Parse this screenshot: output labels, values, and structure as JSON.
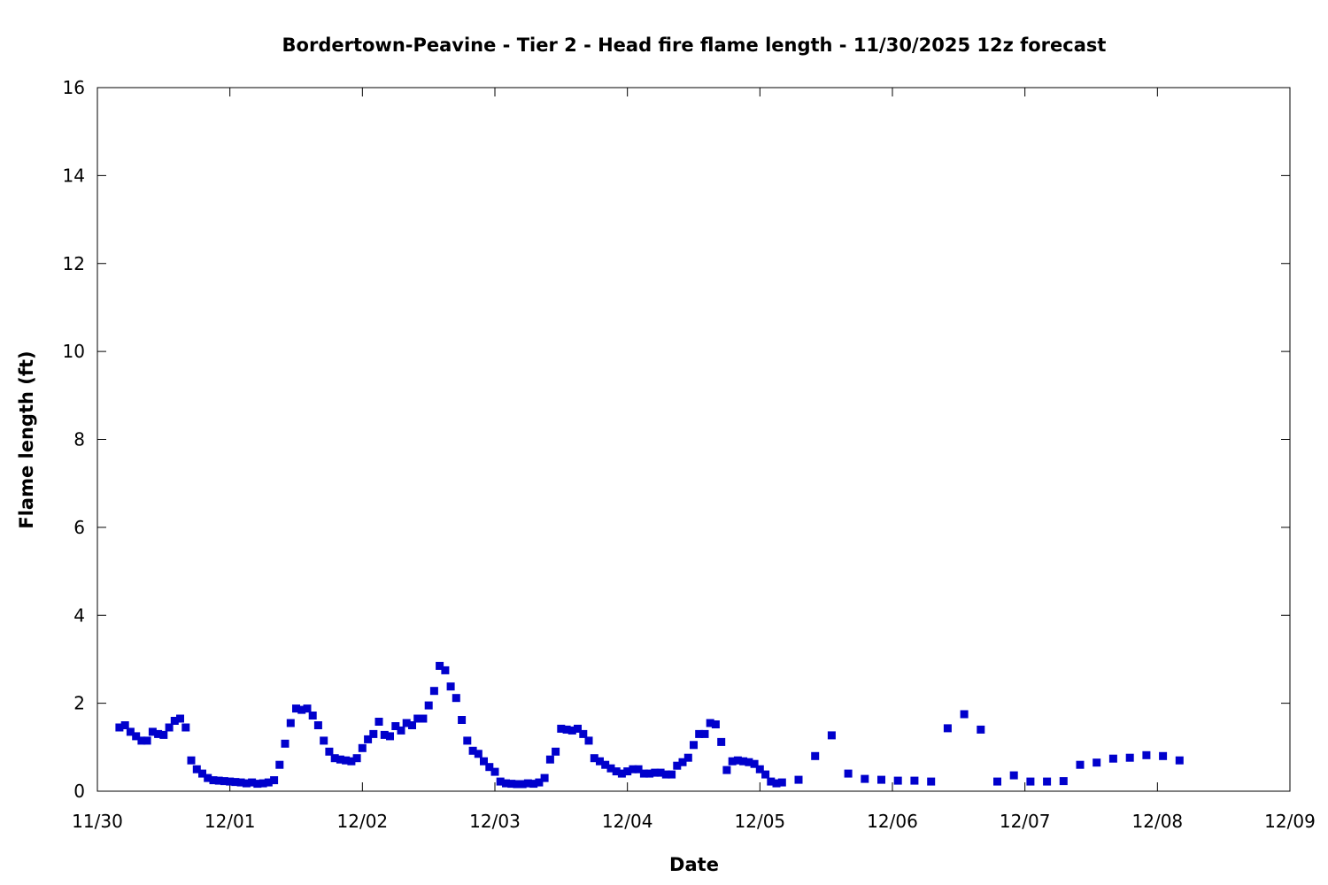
{
  "chart_data": {
    "type": "scatter",
    "title": "Bordertown-Peavine - Tier 2 - Head fire flame length - 11/30/2025 12z forecast",
    "xlabel": "Date",
    "ylabel": "Flame length (ft)",
    "x_ticks": [
      "11/30",
      "12/01",
      "12/02",
      "12/03",
      "12/04",
      "12/05",
      "12/06",
      "12/07",
      "12/08",
      "12/09"
    ],
    "y_ticks": [
      "0",
      "2",
      "4",
      "6",
      "8",
      "10",
      "12",
      "14",
      "16"
    ],
    "xlim": [
      "2025-11-30 00:00",
      "2025-12-09 00:00"
    ],
    "ylim": [
      0,
      16
    ],
    "grid": false,
    "legend": "none",
    "marker_color": "#0000cc",
    "series": [
      {
        "points": [
          [
            "2025-11-30 04:00",
            1.45
          ],
          [
            "2025-11-30 05:00",
            1.5
          ],
          [
            "2025-11-30 06:00",
            1.35
          ],
          [
            "2025-11-30 07:00",
            1.25
          ],
          [
            "2025-11-30 08:00",
            1.15
          ],
          [
            "2025-11-30 09:00",
            1.15
          ],
          [
            "2025-11-30 10:00",
            1.35
          ],
          [
            "2025-11-30 11:00",
            1.3
          ],
          [
            "2025-11-30 12:00",
            1.28
          ],
          [
            "2025-11-30 13:00",
            1.45
          ],
          [
            "2025-11-30 14:00",
            1.6
          ],
          [
            "2025-11-30 15:00",
            1.65
          ],
          [
            "2025-11-30 16:00",
            1.45
          ],
          [
            "2025-11-30 17:00",
            0.7
          ],
          [
            "2025-11-30 18:00",
            0.5
          ],
          [
            "2025-11-30 19:00",
            0.4
          ],
          [
            "2025-11-30 20:00",
            0.3
          ],
          [
            "2025-11-30 21:00",
            0.25
          ],
          [
            "2025-11-30 22:00",
            0.24
          ],
          [
            "2025-11-30 23:00",
            0.23
          ],
          [
            "2025-12-01 00:00",
            0.22
          ],
          [
            "2025-12-01 01:00",
            0.21
          ],
          [
            "2025-12-01 02:00",
            0.2
          ],
          [
            "2025-12-01 03:00",
            0.18
          ],
          [
            "2025-12-01 04:00",
            0.2
          ],
          [
            "2025-12-01 05:00",
            0.17
          ],
          [
            "2025-12-01 06:00",
            0.18
          ],
          [
            "2025-12-01 07:00",
            0.2
          ],
          [
            "2025-12-01 08:00",
            0.25
          ],
          [
            "2025-12-01 09:00",
            0.6
          ],
          [
            "2025-12-01 10:00",
            1.08
          ],
          [
            "2025-12-01 11:00",
            1.55
          ],
          [
            "2025-12-01 12:00",
            1.88
          ],
          [
            "2025-12-01 13:00",
            1.85
          ],
          [
            "2025-12-01 14:00",
            1.88
          ],
          [
            "2025-12-01 15:00",
            1.72
          ],
          [
            "2025-12-01 16:00",
            1.5
          ],
          [
            "2025-12-01 17:00",
            1.15
          ],
          [
            "2025-12-01 18:00",
            0.9
          ],
          [
            "2025-12-01 19:00",
            0.75
          ],
          [
            "2025-12-01 20:00",
            0.72
          ],
          [
            "2025-12-01 21:00",
            0.7
          ],
          [
            "2025-12-01 22:00",
            0.68
          ],
          [
            "2025-12-01 23:00",
            0.75
          ],
          [
            "2025-12-02 00:00",
            0.98
          ],
          [
            "2025-12-02 01:00",
            1.18
          ],
          [
            "2025-12-02 02:00",
            1.3
          ],
          [
            "2025-12-02 03:00",
            1.58
          ],
          [
            "2025-12-02 04:00",
            1.28
          ],
          [
            "2025-12-02 05:00",
            1.25
          ],
          [
            "2025-12-02 06:00",
            1.48
          ],
          [
            "2025-12-02 07:00",
            1.38
          ],
          [
            "2025-12-02 08:00",
            1.55
          ],
          [
            "2025-12-02 09:00",
            1.5
          ],
          [
            "2025-12-02 10:00",
            1.65
          ],
          [
            "2025-12-02 11:00",
            1.65
          ],
          [
            "2025-12-02 12:00",
            1.95
          ],
          [
            "2025-12-02 13:00",
            2.28
          ],
          [
            "2025-12-02 14:00",
            2.85
          ],
          [
            "2025-12-02 15:00",
            2.75
          ],
          [
            "2025-12-02 16:00",
            2.38
          ],
          [
            "2025-12-02 17:00",
            2.12
          ],
          [
            "2025-12-02 18:00",
            1.62
          ],
          [
            "2025-12-02 19:00",
            1.15
          ],
          [
            "2025-12-02 20:00",
            0.92
          ],
          [
            "2025-12-02 21:00",
            0.85
          ],
          [
            "2025-12-02 22:00",
            0.68
          ],
          [
            "2025-12-02 23:00",
            0.55
          ],
          [
            "2025-12-03 00:00",
            0.44
          ],
          [
            "2025-12-03 01:00",
            0.22
          ],
          [
            "2025-12-03 02:00",
            0.18
          ],
          [
            "2025-12-03 03:00",
            0.17
          ],
          [
            "2025-12-03 04:00",
            0.16
          ],
          [
            "2025-12-03 05:00",
            0.16
          ],
          [
            "2025-12-03 06:00",
            0.18
          ],
          [
            "2025-12-03 07:00",
            0.17
          ],
          [
            "2025-12-03 08:00",
            0.2
          ],
          [
            "2025-12-03 09:00",
            0.3
          ],
          [
            "2025-12-03 10:00",
            0.72
          ],
          [
            "2025-12-03 11:00",
            0.9
          ],
          [
            "2025-12-03 12:00",
            1.42
          ],
          [
            "2025-12-03 13:00",
            1.4
          ],
          [
            "2025-12-03 14:00",
            1.38
          ],
          [
            "2025-12-03 15:00",
            1.42
          ],
          [
            "2025-12-03 16:00",
            1.3
          ],
          [
            "2025-12-03 17:00",
            1.15
          ],
          [
            "2025-12-03 18:00",
            0.75
          ],
          [
            "2025-12-03 19:00",
            0.68
          ],
          [
            "2025-12-03 20:00",
            0.6
          ],
          [
            "2025-12-03 21:00",
            0.52
          ],
          [
            "2025-12-03 22:00",
            0.45
          ],
          [
            "2025-12-03 23:00",
            0.4
          ],
          [
            "2025-12-04 00:00",
            0.45
          ],
          [
            "2025-12-04 01:00",
            0.5
          ],
          [
            "2025-12-04 02:00",
            0.5
          ],
          [
            "2025-12-04 03:00",
            0.4
          ],
          [
            "2025-12-04 04:00",
            0.4
          ],
          [
            "2025-12-04 05:00",
            0.42
          ],
          [
            "2025-12-04 06:00",
            0.42
          ],
          [
            "2025-12-04 07:00",
            0.38
          ],
          [
            "2025-12-04 08:00",
            0.38
          ],
          [
            "2025-12-04 09:00",
            0.58
          ],
          [
            "2025-12-04 10:00",
            0.66
          ],
          [
            "2025-12-04 11:00",
            0.76
          ],
          [
            "2025-12-04 12:00",
            1.05
          ],
          [
            "2025-12-04 13:00",
            1.3
          ],
          [
            "2025-12-04 14:00",
            1.3
          ],
          [
            "2025-12-04 15:00",
            1.55
          ],
          [
            "2025-12-04 16:00",
            1.52
          ],
          [
            "2025-12-04 17:00",
            1.12
          ],
          [
            "2025-12-04 18:00",
            0.48
          ],
          [
            "2025-12-04 19:00",
            0.68
          ],
          [
            "2025-12-04 20:00",
            0.7
          ],
          [
            "2025-12-04 21:00",
            0.68
          ],
          [
            "2025-12-04 22:00",
            0.66
          ],
          [
            "2025-12-04 23:00",
            0.62
          ],
          [
            "2025-12-05 00:00",
            0.5
          ],
          [
            "2025-12-05 01:00",
            0.38
          ],
          [
            "2025-12-05 02:00",
            0.22
          ],
          [
            "2025-12-05 03:00",
            0.18
          ],
          [
            "2025-12-05 04:00",
            0.2
          ],
          [
            "2025-12-05 07:00",
            0.26
          ],
          [
            "2025-12-05 10:00",
            0.8
          ],
          [
            "2025-12-05 13:00",
            1.27
          ],
          [
            "2025-12-05 16:00",
            0.4
          ],
          [
            "2025-12-05 19:00",
            0.28
          ],
          [
            "2025-12-05 22:00",
            0.26
          ],
          [
            "2025-12-06 01:00",
            0.24
          ],
          [
            "2025-12-06 04:00",
            0.24
          ],
          [
            "2025-12-06 07:00",
            0.22
          ],
          [
            "2025-12-06 10:00",
            1.43
          ],
          [
            "2025-12-06 13:00",
            1.75
          ],
          [
            "2025-12-06 16:00",
            1.4
          ],
          [
            "2025-12-06 19:00",
            0.22
          ],
          [
            "2025-12-06 22:00",
            0.36
          ],
          [
            "2025-12-07 01:00",
            0.22
          ],
          [
            "2025-12-07 04:00",
            0.22
          ],
          [
            "2025-12-07 07:00",
            0.23
          ],
          [
            "2025-12-07 10:00",
            0.6
          ],
          [
            "2025-12-07 13:00",
            0.65
          ],
          [
            "2025-12-07 16:00",
            0.74
          ],
          [
            "2025-12-07 19:00",
            0.76
          ],
          [
            "2025-12-07 22:00",
            0.82
          ],
          [
            "2025-12-08 01:00",
            0.8
          ],
          [
            "2025-12-08 04:00",
            0.7
          ]
        ]
      }
    ]
  }
}
